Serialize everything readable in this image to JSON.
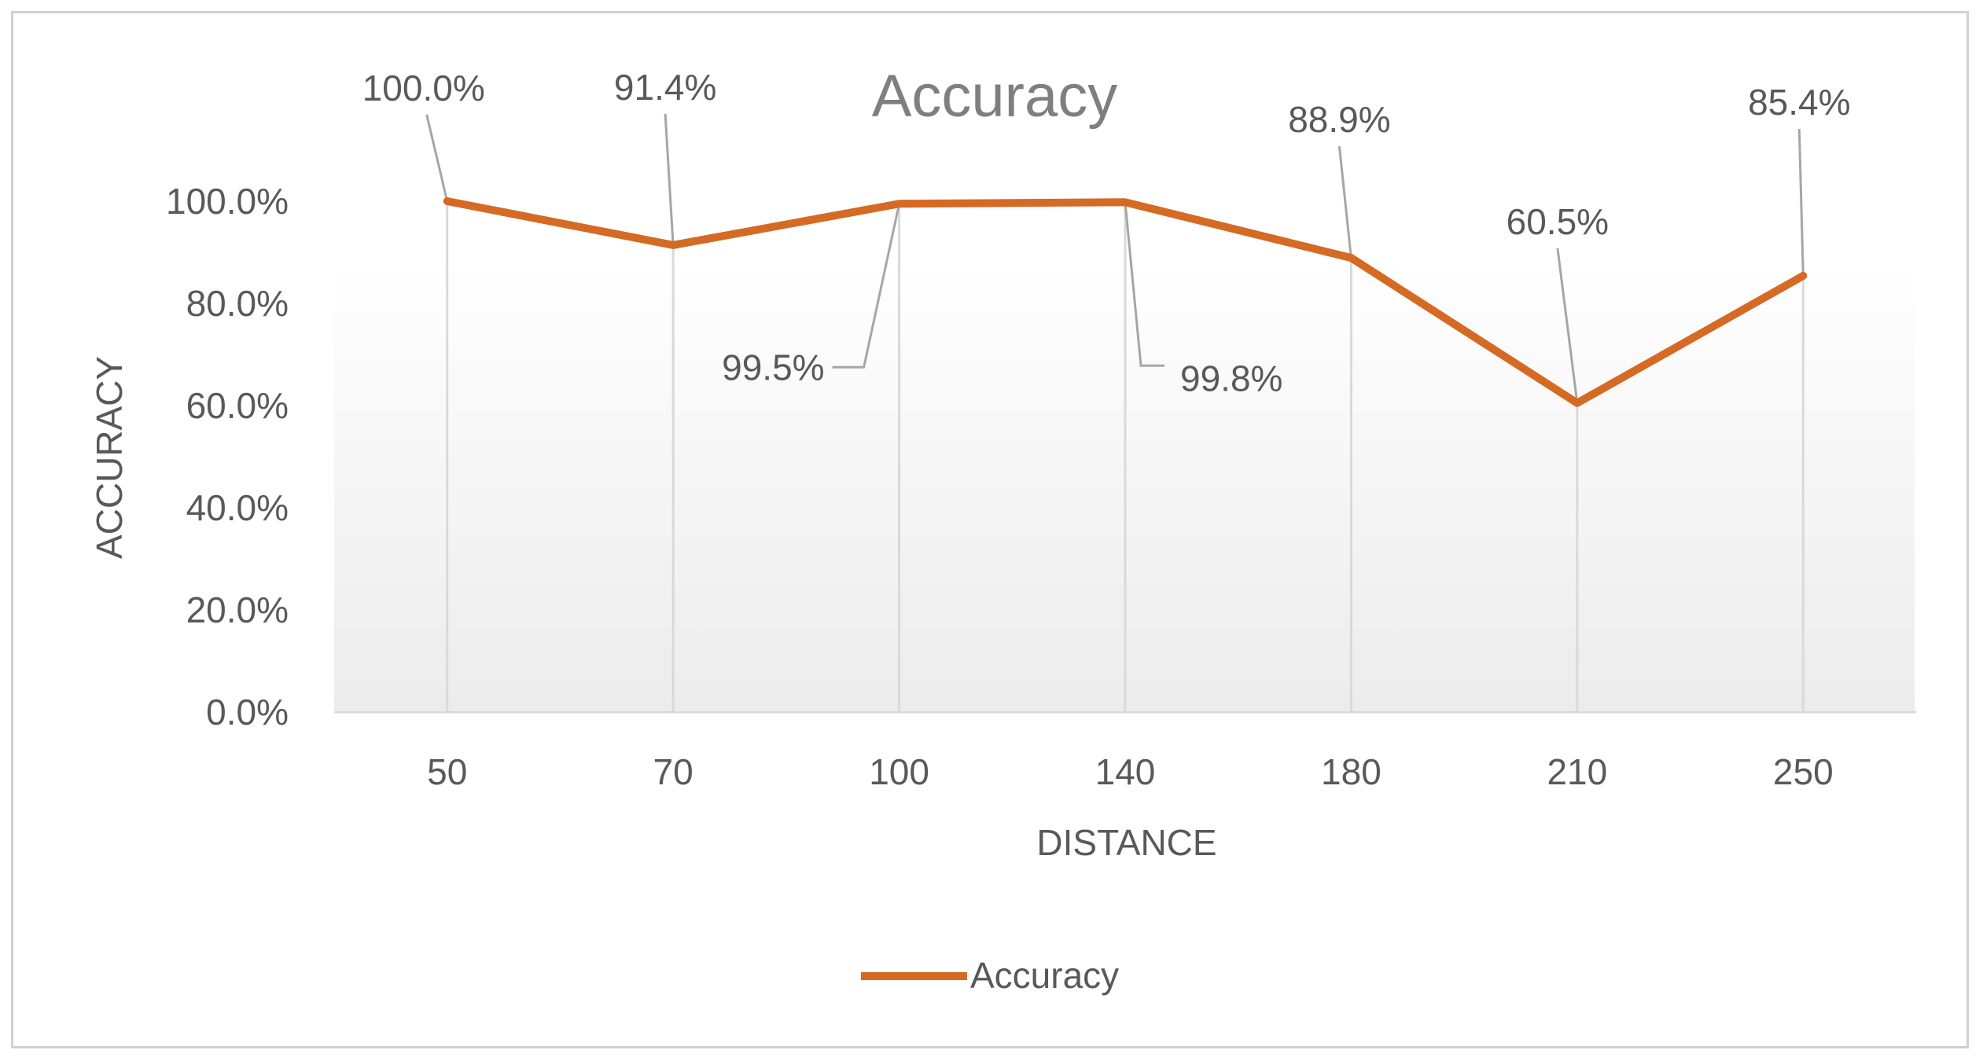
{
  "chart_data": {
    "type": "line",
    "title": "Accuracy",
    "xlabel": "DISTANCE",
    "ylabel": "ACCURACY",
    "categories": [
      "50",
      "70",
      "100",
      "140",
      "180",
      "210",
      "250"
    ],
    "series": [
      {
        "name": "Accuracy",
        "values": [
          100.0,
          91.4,
          99.5,
          99.8,
          88.9,
          60.5,
          85.4
        ],
        "data_labels": [
          "100.0%",
          "91.4%",
          "99.5%",
          "99.8%",
          "88.9%",
          "60.5%",
          "85.4%"
        ],
        "color": "#d46a24"
      }
    ],
    "ylim": [
      0,
      100
    ],
    "yticks": [
      "0.0%",
      "20.0%",
      "40.0%",
      "60.0%",
      "80.0%",
      "100.0%"
    ],
    "grid": false,
    "drop_lines": true,
    "legend_position": "bottom"
  },
  "colors": {
    "series_line": "#d46a24",
    "text": "#595959",
    "title": "#7f7f7f",
    "drop_line": "#d9d9d9",
    "leader_line": "#a6a6a6",
    "axis_line": "#d9d9d9",
    "plot_gradient_bottom": "#ececec"
  }
}
